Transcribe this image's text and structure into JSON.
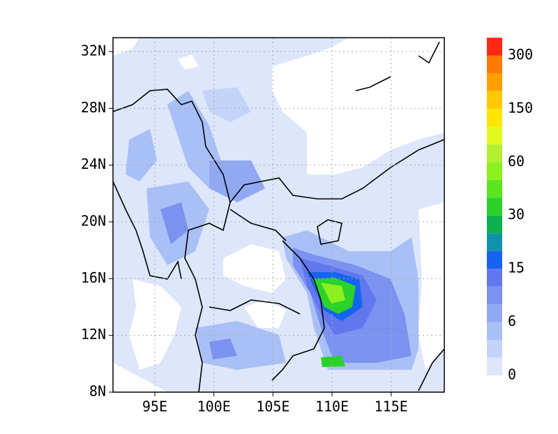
{
  "map": {
    "xlim": [
      91.46,
      119.5
    ],
    "ylim": [
      8,
      32.98
    ],
    "lon_ticks": [
      {
        "value": 95,
        "label": "95E"
      },
      {
        "value": 100,
        "label": "100E"
      },
      {
        "value": 105,
        "label": "105E"
      },
      {
        "value": 110,
        "label": "110E"
      },
      {
        "value": 115,
        "label": "115E"
      }
    ],
    "lat_ticks": [
      {
        "value": 8,
        "label": "8N"
      },
      {
        "value": 12,
        "label": "12N"
      },
      {
        "value": 16,
        "label": "16N"
      },
      {
        "value": 20,
        "label": "20N"
      },
      {
        "value": 24,
        "label": "24N"
      },
      {
        "value": 28,
        "label": "28N"
      },
      {
        "value": 32,
        "label": "32N"
      }
    ],
    "grid": true,
    "colorbar": {
      "colors": [
        "#dde6fb",
        "#c4d4f9",
        "#a9c0f6",
        "#91a8f3",
        "#7b92f1",
        "#6277ee",
        "#1464f0",
        "#1092a8",
        "#0db04f",
        "#2ad22a",
        "#5ae61e",
        "#8cf01e",
        "#b4f032",
        "#e1fa1e",
        "#ffe600",
        "#ffc800",
        "#ffa000",
        "#ff7800",
        "#ff2814"
      ],
      "labels": [
        0,
        6,
        15,
        30,
        60,
        150,
        300
      ]
    }
  }
}
